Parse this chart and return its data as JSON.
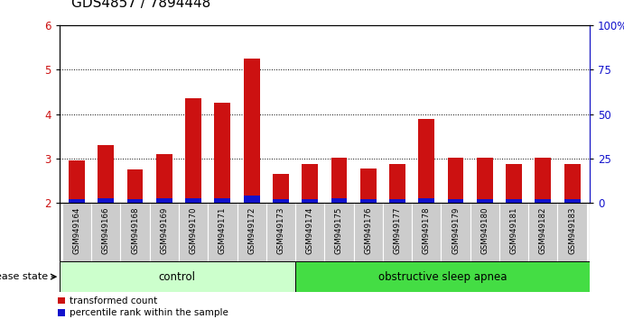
{
  "title": "GDS4857 / 7894448",
  "samples": [
    "GSM949164",
    "GSM949166",
    "GSM949168",
    "GSM949169",
    "GSM949170",
    "GSM949171",
    "GSM949172",
    "GSM949173",
    "GSM949174",
    "GSM949175",
    "GSM949176",
    "GSM949177",
    "GSM949178",
    "GSM949179",
    "GSM949180",
    "GSM949181",
    "GSM949182",
    "GSM949183"
  ],
  "red_values": [
    2.95,
    3.3,
    2.75,
    3.1,
    4.35,
    4.25,
    5.25,
    2.65,
    2.88,
    3.02,
    2.77,
    2.88,
    3.88,
    3.02,
    3.02,
    2.88,
    3.02,
    2.88
  ],
  "blue_values": [
    0.08,
    0.1,
    0.07,
    0.1,
    0.1,
    0.1,
    0.15,
    0.07,
    0.08,
    0.1,
    0.07,
    0.07,
    0.1,
    0.07,
    0.07,
    0.07,
    0.07,
    0.07
  ],
  "ymin": 2.0,
  "ymax": 6.0,
  "yticks": [
    2,
    3,
    4,
    5,
    6
  ],
  "right_yticks": [
    0,
    25,
    50,
    75,
    100
  ],
  "right_ytick_labels": [
    "0",
    "25",
    "50",
    "75",
    "100%"
  ],
  "bar_width": 0.55,
  "red_color": "#cc1111",
  "blue_color": "#1111cc",
  "control_n": 8,
  "apnea_n": 10,
  "control_label": "control",
  "apnea_label": "obstructive sleep apnea",
  "disease_state_label": "disease state",
  "legend_red": "transformed count",
  "legend_blue": "percentile rank within the sample",
  "control_color": "#ccffcc",
  "apnea_color": "#44dd44",
  "tick_bg_color": "#cccccc",
  "bg_color": "#ffffff",
  "dotted_yticks": [
    3,
    4,
    5
  ],
  "title_fontsize": 11,
  "tick_fontsize": 8.5,
  "label_fontsize": 8
}
